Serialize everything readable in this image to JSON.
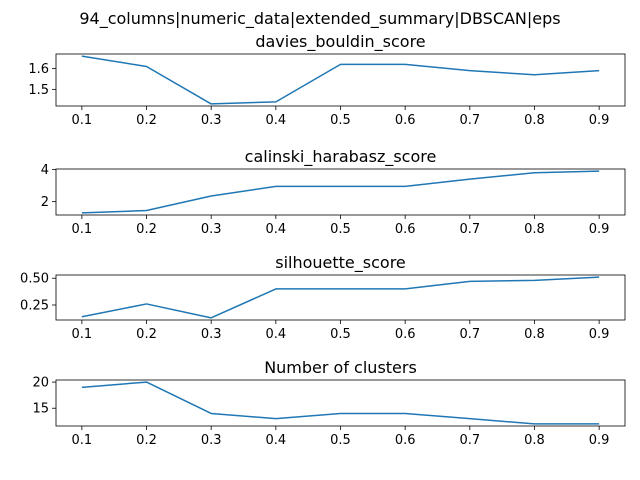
{
  "figure_title": "94_columns|numeric_data|extended_summary|DBSCAN|eps",
  "colors": {
    "line": "#1f77b4",
    "axes": "#000000",
    "background": "#ffffff"
  },
  "chart_data": [
    {
      "type": "line",
      "title": "davies_bouldin_score",
      "x": [
        0.1,
        0.2,
        0.3,
        0.4,
        0.5,
        0.6,
        0.7,
        0.8,
        0.9
      ],
      "x_tick_labels": [
        "0.1",
        "0.2",
        "0.3",
        "0.4",
        "0.5",
        "0.6",
        "0.7",
        "0.8",
        "0.9"
      ],
      "values": [
        1.66,
        1.61,
        1.43,
        1.44,
        1.62,
        1.62,
        1.59,
        1.57,
        1.59
      ],
      "ylim": [
        1.42,
        1.67
      ],
      "y_ticks": [
        1.5,
        1.6
      ],
      "y_tick_labels": [
        "1.5",
        "1.6"
      ],
      "xlabel": "",
      "ylabel": "",
      "grid": false,
      "legend": "none"
    },
    {
      "type": "line",
      "title": "calinski_harabasz_score",
      "x": [
        0.1,
        0.2,
        0.3,
        0.4,
        0.5,
        0.6,
        0.7,
        0.8,
        0.9
      ],
      "x_tick_labels": [
        "0.1",
        "0.2",
        "0.3",
        "0.4",
        "0.5",
        "0.6",
        "0.7",
        "0.8",
        "0.9"
      ],
      "values": [
        1.3,
        1.45,
        2.35,
        2.95,
        2.95,
        2.95,
        3.4,
        3.8,
        3.9
      ],
      "ylim": [
        1.17,
        4.03
      ],
      "y_ticks": [
        2,
        4
      ],
      "y_tick_labels": [
        "2",
        "4"
      ],
      "xlabel": "",
      "ylabel": "",
      "grid": false,
      "legend": "none"
    },
    {
      "type": "line",
      "title": "silhouette_score",
      "x": [
        0.1,
        0.2,
        0.3,
        0.4,
        0.5,
        0.6,
        0.7,
        0.8,
        0.9
      ],
      "x_tick_labels": [
        "0.1",
        "0.2",
        "0.3",
        "0.4",
        "0.5",
        "0.6",
        "0.7",
        "0.8",
        "0.9"
      ],
      "values": [
        0.14,
        0.26,
        0.13,
        0.4,
        0.4,
        0.4,
        0.47,
        0.48,
        0.51
      ],
      "ylim": [
        0.11,
        0.53
      ],
      "y_ticks": [
        0.25,
        0.5
      ],
      "y_tick_labels": [
        "0.25",
        "0.50"
      ],
      "xlabel": "",
      "ylabel": "",
      "grid": false,
      "legend": "none"
    },
    {
      "type": "line",
      "title": "Number of clusters",
      "x": [
        0.1,
        0.2,
        0.3,
        0.4,
        0.5,
        0.6,
        0.7,
        0.8,
        0.9
      ],
      "x_tick_labels": [
        "0.1",
        "0.2",
        "0.3",
        "0.4",
        "0.5",
        "0.6",
        "0.7",
        "0.8",
        "0.9"
      ],
      "values": [
        19,
        20,
        14,
        13,
        14,
        14,
        13,
        12,
        12
      ],
      "ylim": [
        11.6,
        20.4
      ],
      "y_ticks": [
        15,
        20
      ],
      "y_tick_labels": [
        "15",
        "20"
      ],
      "xlabel": "",
      "ylabel": "",
      "grid": false,
      "legend": "none"
    }
  ]
}
